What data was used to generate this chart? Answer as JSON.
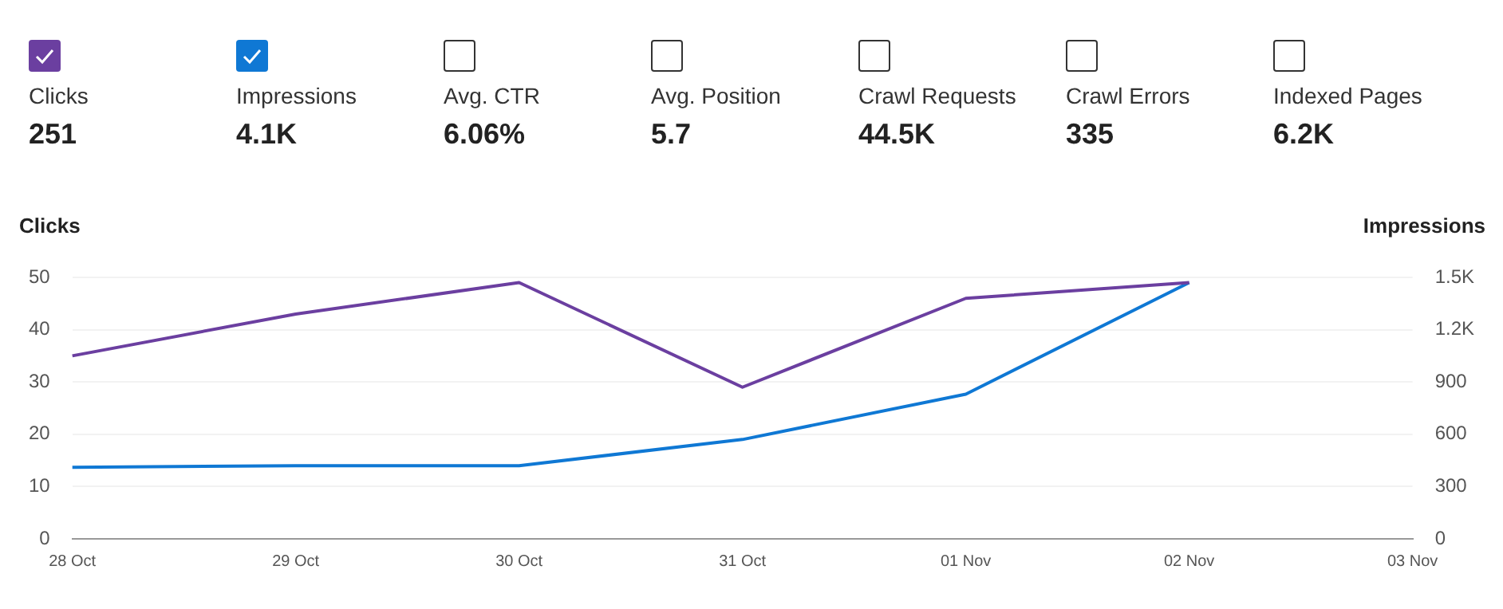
{
  "chart_data": [
    {
      "type": "other",
      "categories": [
        "Clicks",
        "Impressions",
        "Avg. CTR",
        "Avg. Position",
        "Crawl Requests",
        "Crawl Errors",
        "Indexed Pages"
      ],
      "value_labels": [
        "251",
        "4.1K",
        "6.06%",
        "5.7",
        "44.5K",
        "335",
        "6.2K"
      ],
      "colors": [
        "#6b3fa0",
        "#0f78d4",
        null,
        null,
        null,
        null,
        null
      ]
    },
    {
      "type": "line",
      "categories": [
        "28 Oct",
        "29 Oct",
        "30 Oct",
        "31 Oct",
        "01 Nov",
        "02 Nov",
        "03 Nov"
      ],
      "series": [
        {
          "color": "#6b3fa0",
          "values": [
            35,
            43,
            49,
            29,
            46,
            49,
            null
          ]
        },
        {
          "color": "#0f78d4",
          "axis": "y2",
          "values": [
            410,
            420,
            420,
            570,
            830,
            1470,
            null
          ]
        }
      ],
      "ylabel": "Clicks",
      "y2label": "Impressions",
      "ylim": [
        0,
        50
      ],
      "yticks": [
        0,
        10,
        20,
        30,
        40,
        50
      ],
      "y2lim": [
        0,
        1500
      ],
      "y2ticks": [
        0,
        300,
        600,
        900,
        {
          "value": 1200,
          "label": "1.2K"
        },
        {
          "value": 1500,
          "label": "1.5K"
        }
      ],
      "grid": "y",
      "legend": false,
      "marker": "none",
      "line_style": "solid"
    }
  ]
}
